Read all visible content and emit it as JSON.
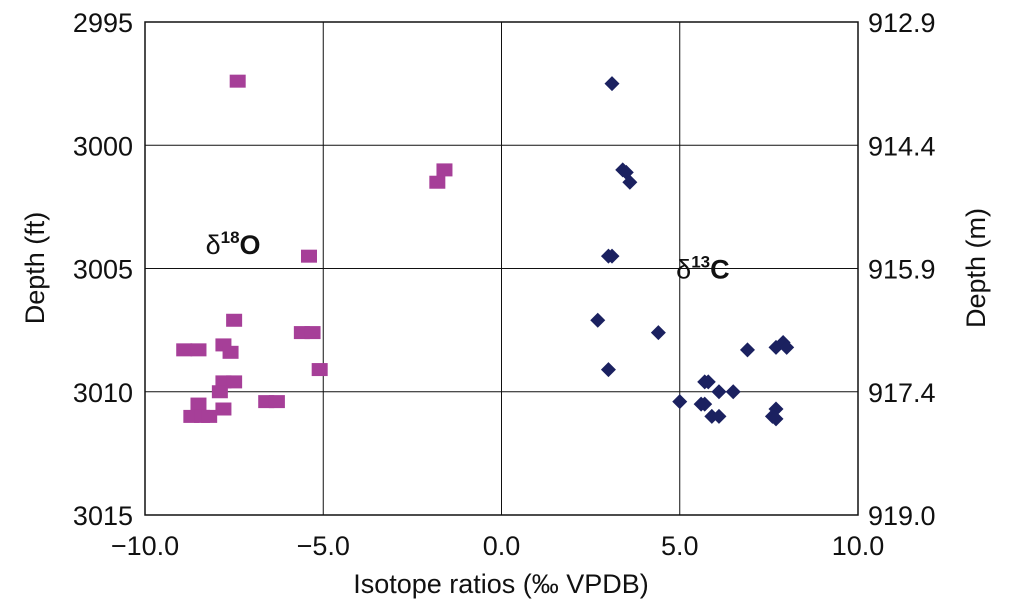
{
  "chart_data": {
    "type": "scatter",
    "xlabel": "Isotope ratios (‰ VPDB)",
    "ylabel_left": "Depth (ft)",
    "ylabel_right": "Depth (m)",
    "xlim": [
      -10.0,
      10.0
    ],
    "ylim": [
      2995,
      3015
    ],
    "x_ticks": [
      "−10.0",
      "−5.0",
      "0.0",
      "5.0",
      "10.0"
    ],
    "x_tick_values": [
      -10,
      -5,
      0,
      5,
      10
    ],
    "y_ticks_left": [
      "2995",
      "3000",
      "3005",
      "3010",
      "3015"
    ],
    "y_ticks_left_values": [
      2995,
      3000,
      3005,
      3010,
      3015
    ],
    "y_ticks_right": [
      "912.9",
      "914.4",
      "915.9",
      "917.4",
      "919.0"
    ],
    "grid": true,
    "y_inverted": true,
    "annotations": [
      {
        "symbol": "δ",
        "superscript": "18",
        "element": "O",
        "x": -8.3,
        "y": 3004
      },
      {
        "symbol": "δ",
        "superscript": "13",
        "element": "C",
        "x": 4.9,
        "y": 3005
      }
    ],
    "series": [
      {
        "marker": "square",
        "color": "#a63f98",
        "points": [
          [
            -7.4,
            2997.4
          ],
          [
            -1.6,
            3001.0
          ],
          [
            -1.8,
            3001.5
          ],
          [
            -5.4,
            3004.5
          ],
          [
            -7.5,
            3007.1
          ],
          [
            -5.6,
            3007.6
          ],
          [
            -5.3,
            3007.6
          ],
          [
            -7.8,
            3008.1
          ],
          [
            -8.9,
            3008.3
          ],
          [
            -8.5,
            3008.3
          ],
          [
            -7.6,
            3008.4
          ],
          [
            -5.1,
            3009.1
          ],
          [
            -7.8,
            3009.6
          ],
          [
            -7.5,
            3009.6
          ],
          [
            -7.9,
            3010.0
          ],
          [
            -8.5,
            3010.5
          ],
          [
            -6.6,
            3010.4
          ],
          [
            -6.3,
            3010.4
          ],
          [
            -7.8,
            3010.7
          ],
          [
            -8.7,
            3011.0
          ],
          [
            -8.4,
            3011.0
          ],
          [
            -8.2,
            3011.0
          ]
        ]
      },
      {
        "marker": "diamond",
        "color": "#1b2160",
        "points": [
          [
            3.1,
            2997.5
          ],
          [
            3.4,
            3001.0
          ],
          [
            3.5,
            3001.1
          ],
          [
            3.6,
            3001.5
          ],
          [
            3.0,
            3004.5
          ],
          [
            3.1,
            3004.5
          ],
          [
            2.7,
            3007.1
          ],
          [
            4.4,
            3007.6
          ],
          [
            7.9,
            3008.0
          ],
          [
            7.7,
            3008.2
          ],
          [
            8.0,
            3008.2
          ],
          [
            6.9,
            3008.3
          ],
          [
            3.0,
            3009.1
          ],
          [
            5.7,
            3009.6
          ],
          [
            5.8,
            3009.6
          ],
          [
            6.1,
            3010.0
          ],
          [
            6.5,
            3010.0
          ],
          [
            5.0,
            3010.4
          ],
          [
            5.6,
            3010.5
          ],
          [
            5.7,
            3010.5
          ],
          [
            7.7,
            3010.7
          ],
          [
            5.9,
            3011.0
          ],
          [
            6.1,
            3011.0
          ],
          [
            7.6,
            3011.0
          ],
          [
            7.7,
            3011.1
          ]
        ]
      }
    ]
  }
}
